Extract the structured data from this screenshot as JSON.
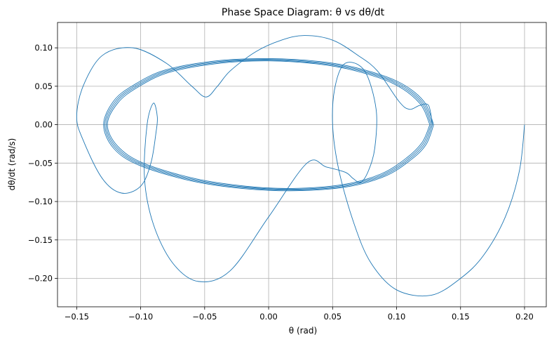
{
  "chart_data": {
    "type": "line",
    "title": "Phase Space Diagram: θ vs dθ/dt",
    "xlabel": "θ (rad)",
    "ylabel": "dθ/dt (rad/s)",
    "xlim": [
      -0.165,
      0.217
    ],
    "ylim": [
      -0.237,
      0.133
    ],
    "xticks": [
      -0.15,
      -0.1,
      -0.05,
      0.0,
      0.05,
      0.1,
      0.15,
      0.2
    ],
    "xtick_labels": [
      "−0.15",
      "−0.10",
      "−0.05",
      "0.00",
      "0.05",
      "0.10",
      "0.15",
      "0.20"
    ],
    "yticks": [
      -0.2,
      -0.15,
      -0.1,
      -0.05,
      0.0,
      0.05,
      0.1
    ],
    "ytick_labels": [
      "−0.20",
      "−0.15",
      "−0.10",
      "−0.05",
      "0.00",
      "0.05",
      "0.10"
    ],
    "grid": true,
    "line_color": "#1f77b4",
    "series": [
      {
        "segments": [
          {
            "x": [
              0.2,
              0.196,
              0.185,
              0.168,
              0.15,
              0.127,
              0.1,
              0.08,
              0.067,
              0.055,
              0.05,
              0.052,
              0.06,
              0.075,
              0.084,
              0.083,
              0.078,
              0.072,
              0.066,
              0.06,
              0.045,
              0.03,
              0.0,
              -0.03,
              -0.055,
              -0.075,
              -0.09,
              -0.097,
              -0.095,
              -0.09,
              -0.087,
              -0.088,
              -0.092,
              -0.1,
              -0.115,
              -0.13,
              -0.145,
              -0.15,
              -0.145,
              -0.13,
              -0.106,
              -0.08,
              -0.06,
              -0.049,
              -0.04,
              -0.03,
              -0.01,
              0.01,
              0.028,
              0.05,
              0.07,
              0.085,
              0.102,
              0.11,
              0.118,
              0.125,
              0.128
            ],
            "y": [
              0.0,
              -0.06,
              -0.12,
              -0.17,
              -0.2,
              -0.222,
              -0.215,
              -0.18,
              -0.13,
              -0.06,
              0.0,
              0.05,
              0.08,
              0.07,
              0.02,
              -0.03,
              -0.06,
              -0.075,
              -0.07,
              -0.062,
              -0.055,
              -0.05,
              -0.12,
              -0.19,
              -0.204,
              -0.18,
              -0.13,
              -0.07,
              0.0,
              0.028,
              0.01,
              -0.01,
              -0.05,
              -0.08,
              -0.089,
              -0.07,
              -0.02,
              0.01,
              0.05,
              0.09,
              0.1,
              0.08,
              0.05,
              0.036,
              0.05,
              0.07,
              0.095,
              0.11,
              0.116,
              0.11,
              0.09,
              0.07,
              0.03,
              0.02,
              0.025,
              0.025,
              0.0
            ]
          },
          {
            "x": [
              0.128,
              0.12,
              0.1,
              0.07,
              0.04,
              0.0,
              -0.04,
              -0.08,
              -0.105,
              -0.12,
              -0.128,
              -0.12,
              -0.1,
              -0.06,
              -0.02,
              0.02,
              0.06,
              0.09,
              0.11,
              0.122,
              0.128
            ],
            "y": [
              0.0,
              0.03,
              0.055,
              0.072,
              0.081,
              0.085,
              0.082,
              0.07,
              0.05,
              0.03,
              0.0,
              -0.03,
              -0.052,
              -0.072,
              -0.082,
              -0.085,
              -0.08,
              -0.066,
              -0.045,
              -0.025,
              0.0
            ]
          },
          {
            "x": [
              0.127,
              0.119,
              0.099,
              0.069,
              0.039,
              0.0,
              -0.039,
              -0.079,
              -0.104,
              -0.119,
              -0.127,
              -0.119,
              -0.099,
              -0.059,
              -0.019,
              0.019,
              0.059,
              0.089,
              0.109,
              0.121,
              0.127
            ],
            "y": [
              0.0,
              0.029,
              0.054,
              0.071,
              0.08,
              0.084,
              0.081,
              0.069,
              0.049,
              0.029,
              0.0,
              -0.029,
              -0.051,
              -0.071,
              -0.081,
              -0.084,
              -0.079,
              -0.065,
              -0.044,
              -0.024,
              0.0
            ]
          },
          {
            "x": [
              0.126,
              0.118,
              0.098,
              0.068,
              0.038,
              0.0,
              -0.038,
              -0.078,
              -0.103,
              -0.118,
              -0.126,
              -0.118,
              -0.098,
              -0.058,
              -0.018,
              0.018,
              0.058,
              0.088,
              0.108,
              0.12,
              0.126
            ],
            "y": [
              0.0,
              0.028,
              0.053,
              0.07,
              0.079,
              0.083,
              0.08,
              0.068,
              0.048,
              0.028,
              0.0,
              -0.028,
              -0.05,
              -0.07,
              -0.08,
              -0.083,
              -0.078,
              -0.064,
              -0.043,
              -0.023,
              0.0
            ]
          },
          {
            "x": [
              0.129,
              0.121,
              0.101,
              0.071,
              0.041,
              0.0,
              -0.041,
              -0.081,
              -0.106,
              -0.121,
              -0.129,
              -0.121,
              -0.101,
              -0.061,
              -0.021,
              0.021,
              0.061,
              0.091,
              0.111,
              0.123,
              0.129
            ],
            "y": [
              0.0,
              0.031,
              0.056,
              0.073,
              0.082,
              0.086,
              0.083,
              0.071,
              0.051,
              0.031,
              0.0,
              -0.031,
              -0.053,
              -0.073,
              -0.083,
              -0.086,
              -0.081,
              -0.067,
              -0.046,
              -0.026,
              0.0
            ]
          }
        ]
      }
    ]
  }
}
